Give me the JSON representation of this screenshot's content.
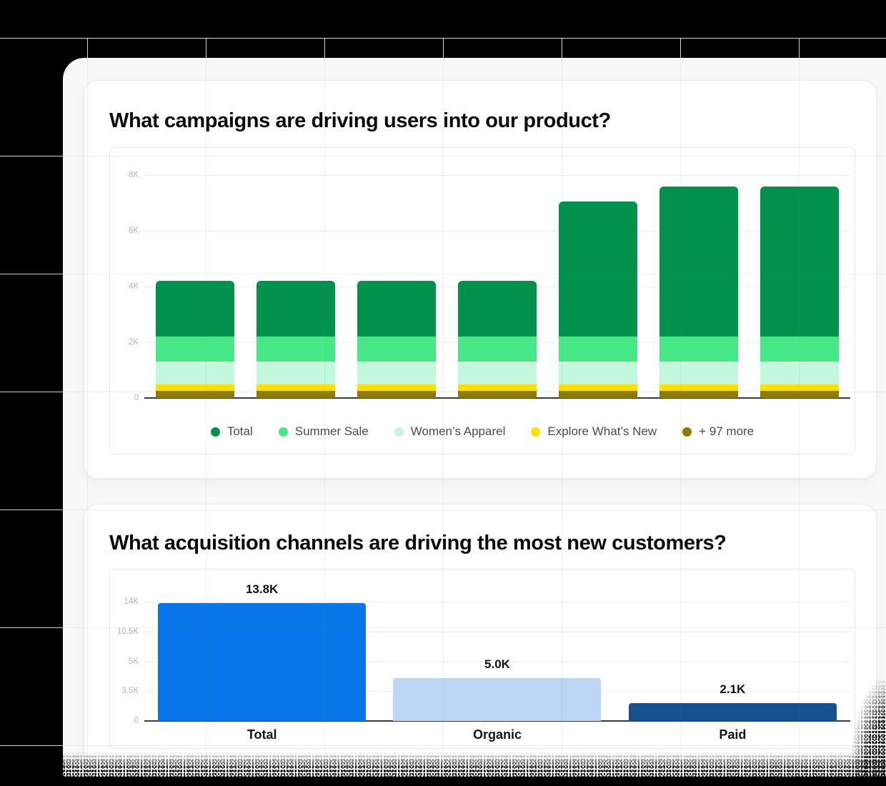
{
  "page": {
    "background": "#000000",
    "grid_line_color_on_black": "#ffffff",
    "panel_background": "#f8f8f6"
  },
  "campaigns_card": {
    "title": "What campaigns are driving users into our product?"
  },
  "acquisition_card": {
    "title": "What acquisition channels are driving the most new customers?"
  },
  "chart_data": [
    {
      "id": "campaigns",
      "type": "bar",
      "stacked": true,
      "title": "What campaigns are driving users into our product?",
      "categories": [
        "1",
        "2",
        "3",
        "4",
        "5",
        "6",
        "7"
      ],
      "x_axis_labels_visible": false,
      "series": [
        {
          "name": "+ 97 more",
          "color": "#8f7a07",
          "values": [
            250,
            250,
            250,
            250,
            250,
            250,
            250
          ]
        },
        {
          "name": "Explore What’s New",
          "color": "#ffdf00",
          "values": [
            250,
            250,
            250,
            250,
            250,
            250,
            250
          ]
        },
        {
          "name": "Women’s Apparel",
          "color": "#c3f8dc",
          "values": [
            800,
            800,
            800,
            800,
            800,
            800,
            800
          ]
        },
        {
          "name": "Summer Sale",
          "color": "#47e788",
          "values": [
            900,
            900,
            900,
            900,
            900,
            900,
            900
          ]
        },
        {
          "name": "Total",
          "color": "#00914c",
          "values": [
            2000,
            2000,
            2000,
            2000,
            4850,
            5400,
            5400
          ]
        }
      ],
      "stack_totals": [
        4200,
        4200,
        4200,
        4200,
        7050,
        7600,
        7600
      ],
      "legend": [
        {
          "label": "Total",
          "color": "#00914c"
        },
        {
          "label": "Summer Sale",
          "color": "#47e788"
        },
        {
          "label": "Women’s Apparel",
          "color": "#c3f8dc"
        },
        {
          "label": "Explore What’s New",
          "color": "#ffdf00"
        },
        {
          "label": "+ 97 more",
          "color": "#8f7a07"
        }
      ],
      "legend_position": "bottom",
      "y_ticks": [
        "8K",
        "6K",
        "4K",
        "2K",
        "0"
      ],
      "ylim": [
        0,
        8000
      ],
      "grid": true
    },
    {
      "id": "acquisition",
      "type": "bar",
      "stacked": false,
      "title": "What acquisition channels are driving the most new customers?",
      "categories": [
        "Total",
        "Organic",
        "Paid"
      ],
      "values": [
        13800,
        5000,
        2100
      ],
      "value_labels": [
        "13.8K",
        "5.0K",
        "2.1K"
      ],
      "bar_colors": [
        "#0876e8",
        "#bcd6f5",
        "#15508f"
      ],
      "y_ticks": [
        "14K",
        "10.5K",
        "5K",
        "3.5K",
        "0"
      ],
      "ylim": [
        0,
        14000
      ],
      "legend_position": "none",
      "grid": true
    }
  ]
}
